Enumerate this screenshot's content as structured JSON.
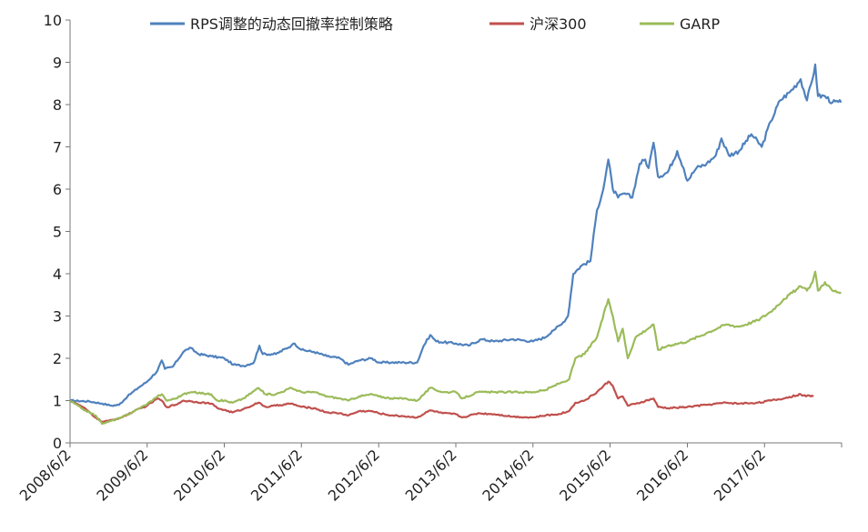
{
  "chart_data": {
    "type": "line",
    "title": "",
    "xlabel": "",
    "ylabel": "",
    "ylim": [
      0,
      10
    ],
    "yticks": [
      "0",
      "1",
      "2",
      "3",
      "4",
      "5",
      "6",
      "7",
      "8",
      "9",
      "10"
    ],
    "xticks": [
      "2008/6/2",
      "2009/6/2",
      "2010/6/2",
      "2011/6/2",
      "2012/6/2",
      "2013/6/2",
      "2014/6/2",
      "2015/6/2",
      "2016/6/2",
      "2017/6/2"
    ],
    "x_range": [
      "2008/6/2",
      "2018/6/2"
    ],
    "grid": false,
    "legend": "top",
    "series": [
      {
        "name": "RPS调整的动态回撤率控制策略",
        "color": "#4F81BD",
        "points": [
          [
            "2008/6/2",
            1.0
          ],
          [
            "2008/9/1",
            0.98
          ],
          [
            "2008/11/1",
            0.93
          ],
          [
            "2008/12/15",
            0.88
          ],
          [
            "2009/1/20",
            0.9
          ],
          [
            "2009/3/1",
            1.1
          ],
          [
            "2009/4/20",
            1.3
          ],
          [
            "2009/6/2",
            1.45
          ],
          [
            "2009/7/20",
            1.7
          ],
          [
            "2009/8/10",
            1.95
          ],
          [
            "2009/8/25",
            1.75
          ],
          [
            "2009/10/1",
            1.8
          ],
          [
            "2009/11/20",
            2.15
          ],
          [
            "2009/12/20",
            2.25
          ],
          [
            "2010/2/1",
            2.1
          ],
          [
            "2010/4/1",
            2.05
          ],
          [
            "2010/6/2",
            2.0
          ],
          [
            "2010/7/15",
            1.85
          ],
          [
            "2010/9/1",
            1.82
          ],
          [
            "2010/10/20",
            1.9
          ],
          [
            "2010/11/15",
            2.3
          ],
          [
            "2010/12/1",
            2.1
          ],
          [
            "2011/2/1",
            2.1
          ],
          [
            "2011/4/15",
            2.3
          ],
          [
            "2011/5/1",
            2.35
          ],
          [
            "2011/6/2",
            2.2
          ],
          [
            "2011/8/1",
            2.15
          ],
          [
            "2011/10/1",
            2.05
          ],
          [
            "2011/12/1",
            2.0
          ],
          [
            "2012/1/10",
            1.85
          ],
          [
            "2012/3/1",
            1.95
          ],
          [
            "2012/5/1",
            2.0
          ],
          [
            "2012/6/2",
            1.9
          ],
          [
            "2012/8/1",
            1.9
          ],
          [
            "2012/10/1",
            1.9
          ],
          [
            "2012/12/1",
            1.9
          ],
          [
            "2013/1/1",
            2.3
          ],
          [
            "2013/2/1",
            2.55
          ],
          [
            "2013/3/1",
            2.4
          ],
          [
            "2013/6/2",
            2.35
          ],
          [
            "2013/8/1",
            2.3
          ],
          [
            "2013/10/1",
            2.45
          ],
          [
            "2013/12/1",
            2.4
          ],
          [
            "2014/3/1",
            2.45
          ],
          [
            "2014/6/2",
            2.4
          ],
          [
            "2014/8/1",
            2.5
          ],
          [
            "2014/9/1",
            2.65
          ],
          [
            "2014/10/15",
            2.8
          ],
          [
            "2014/11/15",
            3.0
          ],
          [
            "2014/12/10",
            4.0
          ],
          [
            "2015/1/20",
            4.2
          ],
          [
            "2015/3/1",
            4.3
          ],
          [
            "2015/4/1",
            5.5
          ],
          [
            "2015/5/1",
            6.0
          ],
          [
            "2015/5/25",
            6.7
          ],
          [
            "2015/6/15",
            6.0
          ],
          [
            "2015/7/10",
            5.8
          ],
          [
            "2015/8/10",
            5.9
          ],
          [
            "2015/9/15",
            5.8
          ],
          [
            "2015/10/20",
            6.6
          ],
          [
            "2015/11/15",
            6.7
          ],
          [
            "2015/12/1",
            6.5
          ],
          [
            "2015/12/25",
            7.1
          ],
          [
            "2016/1/15",
            6.3
          ],
          [
            "2016/3/1",
            6.4
          ],
          [
            "2016/4/15",
            6.9
          ],
          [
            "2016/5/15",
            6.5
          ],
          [
            "2016/6/2",
            6.2
          ],
          [
            "2016/7/15",
            6.5
          ],
          [
            "2016/9/1",
            6.6
          ],
          [
            "2016/10/15",
            6.8
          ],
          [
            "2016/11/10",
            7.2
          ],
          [
            "2016/12/15",
            6.8
          ],
          [
            "2017/2/1",
            6.9
          ],
          [
            "2017/4/1",
            7.3
          ],
          [
            "2017/5/20",
            7.0
          ],
          [
            "2017/7/1",
            7.6
          ],
          [
            "2017/8/15",
            8.1
          ],
          [
            "2017/10/1",
            8.3
          ],
          [
            "2017/11/20",
            8.6
          ],
          [
            "2017/12/20",
            8.1
          ],
          [
            "2018/1/15",
            8.6
          ],
          [
            "2018/1/28",
            8.95
          ],
          [
            "2018/2/10",
            8.2
          ],
          [
            "2018/3/15",
            8.2
          ],
          [
            "2018/4/20",
            8.05
          ],
          [
            "2018/5/31",
            8.05
          ]
        ]
      },
      {
        "name": "沪深300",
        "color": "#C0504D",
        "points": [
          [
            "2008/6/2",
            1.0
          ],
          [
            "2008/8/1",
            0.85
          ],
          [
            "2008/10/1",
            0.6
          ],
          [
            "2008/11/1",
            0.5
          ],
          [
            "2008/12/1",
            0.52
          ],
          [
            "2009/2/1",
            0.6
          ],
          [
            "2009/4/1",
            0.75
          ],
          [
            "2009/6/2",
            0.88
          ],
          [
            "2009/7/20",
            1.05
          ],
          [
            "2009/8/10",
            1.0
          ],
          [
            "2009/9/1",
            0.85
          ],
          [
            "2009/10/15",
            0.9
          ],
          [
            "2009/11/20",
            1.0
          ],
          [
            "2010/1/1",
            0.98
          ],
          [
            "2010/4/1",
            0.93
          ],
          [
            "2010/5/1",
            0.82
          ],
          [
            "2010/6/2",
            0.78
          ],
          [
            "2010/7/10",
            0.72
          ],
          [
            "2010/9/1",
            0.8
          ],
          [
            "2010/11/10",
            0.95
          ],
          [
            "2010/12/15",
            0.85
          ],
          [
            "2011/2/1",
            0.88
          ],
          [
            "2011/4/15",
            0.93
          ],
          [
            "2011/6/2",
            0.85
          ],
          [
            "2011/8/1",
            0.82
          ],
          [
            "2011/10/1",
            0.72
          ],
          [
            "2011/12/1",
            0.7
          ],
          [
            "2012/1/10",
            0.65
          ],
          [
            "2012/3/1",
            0.75
          ],
          [
            "2012/5/1",
            0.75
          ],
          [
            "2012/6/2",
            0.7
          ],
          [
            "2012/8/1",
            0.65
          ],
          [
            "2012/10/1",
            0.63
          ],
          [
            "2012/12/1",
            0.6
          ],
          [
            "2013/2/1",
            0.77
          ],
          [
            "2013/4/1",
            0.7
          ],
          [
            "2013/6/2",
            0.68
          ],
          [
            "2013/7/1",
            0.6
          ],
          [
            "2013/9/15",
            0.7
          ],
          [
            "2013/12/1",
            0.68
          ],
          [
            "2014/3/1",
            0.62
          ],
          [
            "2014/6/2",
            0.6
          ],
          [
            "2014/8/1",
            0.65
          ],
          [
            "2014/10/1",
            0.68
          ],
          [
            "2014/11/20",
            0.75
          ],
          [
            "2014/12/20",
            0.95
          ],
          [
            "2015/2/1",
            1.0
          ],
          [
            "2015/4/1",
            1.2
          ],
          [
            "2015/5/25",
            1.45
          ],
          [
            "2015/6/15",
            1.35
          ],
          [
            "2015/7/10",
            1.05
          ],
          [
            "2015/8/1",
            1.1
          ],
          [
            "2015/8/25",
            0.88
          ],
          [
            "2015/10/1",
            0.92
          ],
          [
            "2015/12/25",
            1.05
          ],
          [
            "2016/1/15",
            0.85
          ],
          [
            "2016/3/1",
            0.82
          ],
          [
            "2016/6/2",
            0.85
          ],
          [
            "2016/9/1",
            0.9
          ],
          [
            "2016/12/1",
            0.95
          ],
          [
            "2017/2/1",
            0.93
          ],
          [
            "2017/5/1",
            0.95
          ],
          [
            "2017/7/1",
            1.0
          ],
          [
            "2017/9/1",
            1.05
          ],
          [
            "2017/11/20",
            1.15
          ],
          [
            "2017/12/15",
            1.1
          ],
          [
            "2018/1/1",
            1.12
          ],
          [
            "2018/1/20",
            1.1
          ]
        ]
      },
      {
        "name": "GARP",
        "color": "#9BBB59",
        "points": [
          [
            "2008/6/2",
            1.0
          ],
          [
            "2008/8/1",
            0.8
          ],
          [
            "2008/10/1",
            0.65
          ],
          [
            "2008/11/1",
            0.45
          ],
          [
            "2008/12/1",
            0.5
          ],
          [
            "2009/2/1",
            0.6
          ],
          [
            "2009/4/1",
            0.75
          ],
          [
            "2009/6/2",
            0.92
          ],
          [
            "2009/7/20",
            1.1
          ],
          [
            "2009/8/10",
            1.15
          ],
          [
            "2009/9/1",
            1.0
          ],
          [
            "2009/10/15",
            1.05
          ],
          [
            "2009/11/20",
            1.15
          ],
          [
            "2010/1/1",
            1.2
          ],
          [
            "2010/4/1",
            1.15
          ],
          [
            "2010/5/1",
            1.0
          ],
          [
            "2010/6/2",
            1.0
          ],
          [
            "2010/7/10",
            0.95
          ],
          [
            "2010/9/1",
            1.05
          ],
          [
            "2010/11/10",
            1.3
          ],
          [
            "2010/12/15",
            1.15
          ],
          [
            "2011/2/1",
            1.15
          ],
          [
            "2011/4/15",
            1.3
          ],
          [
            "2011/6/2",
            1.2
          ],
          [
            "2011/8/1",
            1.2
          ],
          [
            "2011/10/1",
            1.1
          ],
          [
            "2011/12/1",
            1.05
          ],
          [
            "2012/1/10",
            1.0
          ],
          [
            "2012/3/1",
            1.1
          ],
          [
            "2012/5/1",
            1.15
          ],
          [
            "2012/6/2",
            1.1
          ],
          [
            "2012/8/1",
            1.05
          ],
          [
            "2012/10/1",
            1.05
          ],
          [
            "2012/12/1",
            1.0
          ],
          [
            "2013/2/1",
            1.3
          ],
          [
            "2013/4/1",
            1.2
          ],
          [
            "2013/6/2",
            1.2
          ],
          [
            "2013/7/1",
            1.05
          ],
          [
            "2013/9/15",
            1.2
          ],
          [
            "2013/12/1",
            1.2
          ],
          [
            "2014/3/1",
            1.2
          ],
          [
            "2014/6/2",
            1.2
          ],
          [
            "2014/8/1",
            1.25
          ],
          [
            "2014/10/1",
            1.4
          ],
          [
            "2014/11/20",
            1.5
          ],
          [
            "2014/12/20",
            2.0
          ],
          [
            "2015/2/1",
            2.1
          ],
          [
            "2015/4/1",
            2.5
          ],
          [
            "2015/5/25",
            3.4
          ],
          [
            "2015/6/15",
            3.0
          ],
          [
            "2015/7/10",
            2.4
          ],
          [
            "2015/8/1",
            2.7
          ],
          [
            "2015/8/25",
            2.0
          ],
          [
            "2015/10/1",
            2.5
          ],
          [
            "2015/12/25",
            2.8
          ],
          [
            "2016/1/15",
            2.2
          ],
          [
            "2016/3/1",
            2.3
          ],
          [
            "2016/6/2",
            2.4
          ],
          [
            "2016/9/1",
            2.6
          ],
          [
            "2016/12/1",
            2.8
          ],
          [
            "2017/2/1",
            2.75
          ],
          [
            "2017/5/1",
            2.9
          ],
          [
            "2017/7/1",
            3.1
          ],
          [
            "2017/9/1",
            3.4
          ],
          [
            "2017/11/20",
            3.7
          ],
          [
            "2017/12/20",
            3.6
          ],
          [
            "2018/1/15",
            3.8
          ],
          [
            "2018/1/28",
            4.05
          ],
          [
            "2018/2/10",
            3.6
          ],
          [
            "2018/3/15",
            3.8
          ],
          [
            "2018/4/20",
            3.6
          ],
          [
            "2018/5/31",
            3.55
          ]
        ]
      }
    ]
  }
}
